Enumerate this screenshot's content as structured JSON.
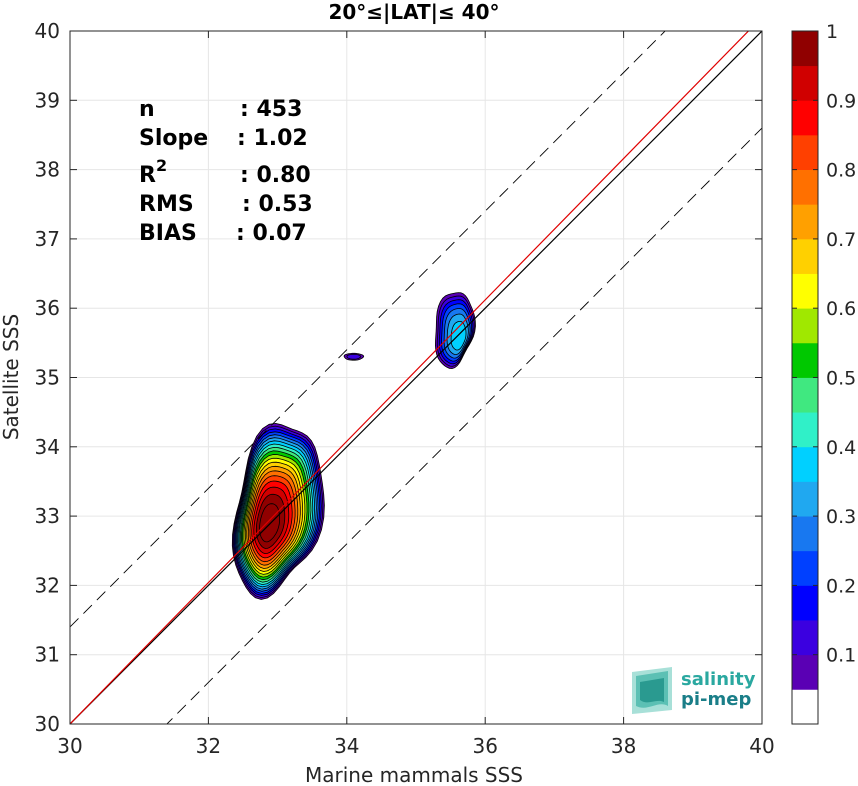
{
  "chart_data": {
    "type": "contour-density-scatter",
    "title": "20°≤|LAT|≤ 40°",
    "xlabel": "Marine mammals SSS",
    "ylabel": "Satellite SSS",
    "xlim": [
      30,
      40
    ],
    "ylim": [
      30,
      40
    ],
    "xticks": [
      30,
      32,
      34,
      36,
      38,
      40
    ],
    "yticks": [
      30,
      31,
      32,
      33,
      34,
      35,
      36,
      37,
      38,
      39,
      40
    ],
    "grid": true,
    "stats": [
      {
        "key": "n",
        "sep": ": ",
        "value": "453"
      },
      {
        "key": "Slope",
        "sep": ": ",
        "value": "1.02"
      },
      {
        "key": "R",
        "sup": "2",
        "sep": ": ",
        "value": "0.80"
      },
      {
        "key": "RMS",
        "sep": ": ",
        "value": "0.53"
      },
      {
        "key": "BIAS",
        "sep": ": ",
        "value": "0.07"
      }
    ],
    "reference_lines": [
      {
        "name": "identity",
        "slope": 1,
        "intercept": 0,
        "color": "#000000",
        "style": "solid"
      },
      {
        "name": "fit",
        "slope": 1.02,
        "intercept": -0.6,
        "color": "#e00000",
        "style": "solid"
      },
      {
        "name": "upper-bound",
        "slope": 1,
        "intercept": 1.4,
        "color": "#000000",
        "style": "dashed"
      },
      {
        "name": "lower-bound",
        "slope": 1,
        "intercept": -1.4,
        "color": "#000000",
        "style": "dashed"
      }
    ],
    "density_clusters": [
      {
        "name": "main",
        "cx": 32.85,
        "cy": 32.85,
        "peak": 1.0
      },
      {
        "name": "upper",
        "cx": 35.6,
        "cy": 35.6,
        "peak": 0.37
      },
      {
        "name": "small",
        "cx": 34.1,
        "cy": 35.3,
        "peak": 0.1
      }
    ],
    "colorbar": {
      "min": 0,
      "max": 1,
      "ticks": [
        "0.1",
        "0.2",
        "0.3",
        "0.4",
        "0.5",
        "0.6",
        "0.7",
        "0.8",
        "0.9",
        "1"
      ],
      "colors": [
        "#ffffff",
        "#5a00b4",
        "#3b00e0",
        "#0000ff",
        "#0040ff",
        "#1878f0",
        "#20a8f0",
        "#00d0ff",
        "#30f0c8",
        "#40e880",
        "#00c800",
        "#a0e800",
        "#ffff00",
        "#ffd000",
        "#ffa000",
        "#ff7000",
        "#ff4000",
        "#ff0000",
        "#d00000",
        "#900000"
      ]
    }
  },
  "logo": {
    "line1": "salinity",
    "line2": "pi-mep",
    "colors": [
      "#2aa8a0",
      "#1a7e88"
    ]
  }
}
